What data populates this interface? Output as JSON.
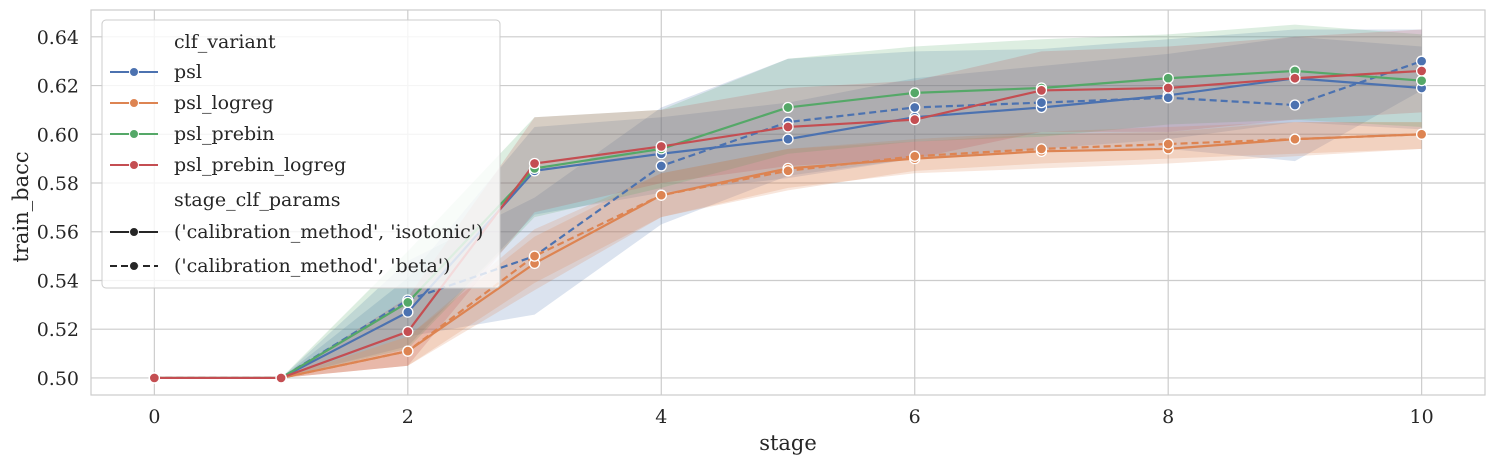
{
  "chart_data": {
    "type": "line",
    "xlabel": "stage",
    "ylabel": "train_bacc",
    "xlim": [
      -0.5,
      10.5
    ],
    "ylim": [
      0.493,
      0.651
    ],
    "xticks": [
      0,
      2,
      4,
      6,
      8,
      10
    ],
    "yticks": [
      0.5,
      0.52,
      0.54,
      0.56,
      0.58,
      0.6,
      0.62,
      0.64
    ],
    "ytick_labels": [
      "0.50",
      "0.52",
      "0.54",
      "0.56",
      "0.58",
      "0.60",
      "0.62",
      "0.64"
    ],
    "xtick_labels": [
      "0",
      "2",
      "4",
      "6",
      "8",
      "10"
    ],
    "grid": true,
    "legend_position": "top-left",
    "legend": {
      "hue_title": "clf_variant",
      "style_title": "stage_clf_params",
      "style_entries": [
        {
          "label": "('calibration_method', 'isotonic')",
          "dash": "solid"
        },
        {
          "label": "('calibration_method', 'beta')",
          "dash": "dashed"
        }
      ]
    },
    "series": [
      {
        "name": "psl",
        "color": "#4c72b0",
        "style": "isotonic",
        "x": [
          0,
          1,
          2,
          3,
          4,
          5,
          6,
          7,
          8,
          9,
          10
        ],
        "y": [
          0.5,
          0.5,
          0.527,
          0.585,
          0.592,
          0.598,
          0.607,
          0.611,
          0.616,
          0.623,
          0.619
        ],
        "lo": [
          0.5,
          0.5,
          0.513,
          0.567,
          0.576,
          0.582,
          0.59,
          0.594,
          0.598,
          0.605,
          0.602
        ],
        "hi": [
          0.5,
          0.5,
          0.541,
          0.603,
          0.607,
          0.613,
          0.623,
          0.628,
          0.633,
          0.64,
          0.636
        ]
      },
      {
        "name": "psl",
        "color": "#4c72b0",
        "style": "beta",
        "x": [
          0,
          1,
          2,
          3,
          4,
          5,
          6,
          7,
          8,
          9,
          10
        ],
        "y": [
          0.5,
          0.5,
          0.532,
          0.55,
          0.587,
          0.605,
          0.611,
          0.613,
          0.615,
          0.612,
          0.63
        ],
        "lo": [
          0.5,
          0.5,
          0.517,
          0.526,
          0.563,
          0.583,
          0.59,
          0.593,
          0.594,
          0.589,
          0.618
        ],
        "hi": [
          0.5,
          0.5,
          0.548,
          0.574,
          0.611,
          0.631,
          0.634,
          0.635,
          0.639,
          0.643,
          0.643
        ]
      },
      {
        "name": "psl_logreg",
        "color": "#dd8452",
        "style": "isotonic",
        "x": [
          0,
          1,
          2,
          3,
          4,
          5,
          6,
          7,
          8,
          9,
          10
        ],
        "y": [
          0.5,
          0.5,
          0.511,
          0.547,
          0.575,
          0.586,
          0.59,
          0.593,
          0.594,
          0.598,
          0.6
        ],
        "lo": [
          0.5,
          0.5,
          0.505,
          0.536,
          0.566,
          0.578,
          0.584,
          0.586,
          0.588,
          0.591,
          0.594
        ],
        "hi": [
          0.5,
          0.5,
          0.517,
          0.558,
          0.584,
          0.594,
          0.597,
          0.6,
          0.601,
          0.605,
          0.605
        ]
      },
      {
        "name": "psl_logreg",
        "color": "#dd8452",
        "style": "beta",
        "x": [
          0,
          1,
          2,
          3,
          4,
          5,
          6,
          7,
          8,
          9,
          10
        ],
        "y": [
          0.5,
          0.5,
          0.511,
          0.55,
          0.575,
          0.585,
          0.591,
          0.594,
          0.596,
          0.598,
          0.6
        ],
        "lo": [
          0.5,
          0.5,
          0.505,
          0.539,
          0.566,
          0.577,
          0.585,
          0.588,
          0.59,
          0.592,
          0.594
        ],
        "hi": [
          0.5,
          0.5,
          0.517,
          0.561,
          0.584,
          0.594,
          0.598,
          0.601,
          0.603,
          0.605,
          0.605
        ]
      },
      {
        "name": "psl_prebin",
        "color": "#55a868",
        "style": "isotonic",
        "x": [
          0,
          1,
          2,
          3,
          4,
          5,
          6,
          7,
          8,
          9,
          10
        ],
        "y": [
          0.5,
          0.5,
          0.531,
          0.586,
          0.594,
          0.611,
          0.617,
          0.619,
          0.623,
          0.626,
          0.622
        ],
        "lo": [
          0.5,
          0.5,
          0.512,
          0.566,
          0.578,
          0.592,
          0.597,
          0.599,
          0.604,
          0.606,
          0.603
        ],
        "hi": [
          0.5,
          0.5,
          0.552,
          0.607,
          0.61,
          0.631,
          0.636,
          0.639,
          0.641,
          0.645,
          0.641
        ]
      },
      {
        "name": "psl_prebin_logreg",
        "color": "#c44e52",
        "style": "isotonic",
        "x": [
          0,
          1,
          2,
          3,
          4,
          5,
          6,
          7,
          8,
          9,
          10
        ],
        "y": [
          0.5,
          0.5,
          0.519,
          0.588,
          0.595,
          0.603,
          0.606,
          0.618,
          0.619,
          0.623,
          0.626
        ],
        "lo": [
          0.5,
          0.5,
          0.505,
          0.568,
          0.58,
          0.587,
          0.59,
          0.601,
          0.601,
          0.606,
          0.609
        ],
        "hi": [
          0.5,
          0.5,
          0.533,
          0.607,
          0.61,
          0.619,
          0.622,
          0.634,
          0.636,
          0.64,
          0.643
        ]
      }
    ]
  }
}
